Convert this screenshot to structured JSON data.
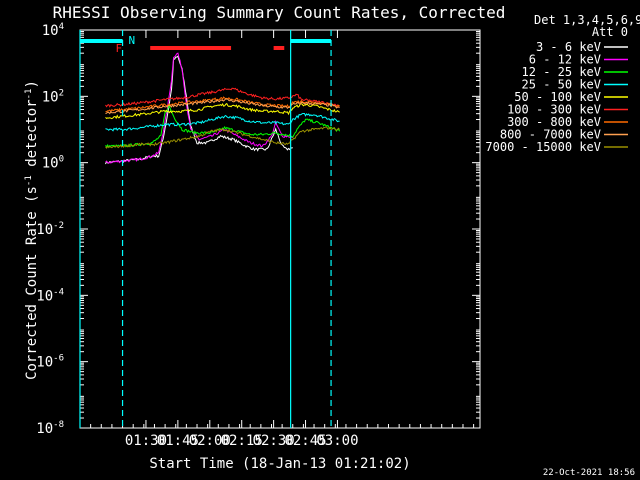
{
  "chart_data": {
    "type": "line",
    "title": "RHESSI Observing Summary Count Rates, Corrected",
    "xlabel": "Start Time (18-Jan-13 01:21:02)",
    "ylabel_main": "Corrected Count Rate (s",
    "ylabel_sup1": "-1",
    "ylabel_mid": " detector",
    "ylabel_sup2": "-1",
    "ylabel_end": ")",
    "yscale": "log",
    "ylim_exp": [
      -8,
      4
    ],
    "xlim_min": [
      -22,
      166
    ],
    "x_ticks": [
      {
        "min": 9,
        "label": "01:30"
      },
      {
        "min": 24,
        "label": "01:45"
      },
      {
        "min": 39,
        "label": "02:00"
      },
      {
        "min": 54,
        "label": "02:15"
      },
      {
        "min": 69,
        "label": "02:30"
      },
      {
        "min": 84,
        "label": "02:45"
      },
      {
        "min": 99,
        "label": "03:00"
      }
    ],
    "y_ticks": [
      {
        "exp": 4,
        "label": "10",
        "sup": "4"
      },
      {
        "exp": 2,
        "label": "10",
        "sup": "2"
      },
      {
        "exp": 0,
        "label": "10",
        "sup": "0"
      },
      {
        "exp": -2,
        "label": "10",
        "sup": "-2"
      },
      {
        "exp": -4,
        "label": "10",
        "sup": "-4"
      },
      {
        "exp": -6,
        "label": "10",
        "sup": "-6"
      },
      {
        "exp": -8,
        "label": "10",
        "sup": "-8"
      }
    ],
    "legend_header": [
      "Det 1,3,4,5,6,9,",
      "Att 0"
    ],
    "series": [
      {
        "name": "3 - 6 keV",
        "color": "#ffffff",
        "points": [
          [
            -10,
            0.0
          ],
          [
            -2,
            0.05
          ],
          [
            6,
            0.1
          ],
          [
            12,
            0.2
          ],
          [
            15,
            0.2
          ],
          [
            17,
            0.7
          ],
          [
            19,
            1.4
          ],
          [
            21,
            2.2
          ],
          [
            22,
            3.1
          ],
          [
            24,
            3.2
          ],
          [
            26,
            2.8
          ],
          [
            28,
            2.0
          ],
          [
            30,
            1.1
          ],
          [
            33,
            0.6
          ],
          [
            38,
            0.6
          ],
          [
            44,
            0.8
          ],
          [
            50,
            0.7
          ],
          [
            56,
            0.5
          ],
          [
            60,
            0.4
          ],
          [
            66,
            0.4
          ],
          [
            70,
            1.0
          ],
          [
            73,
            0.5
          ],
          [
            75,
            0.4
          ],
          [
            78,
            0.45
          ]
        ]
      },
      {
        "name": "6 - 12 keV",
        "color": "#ff00ff",
        "points": [
          [
            -10,
            0.0
          ],
          [
            -2,
            0.05
          ],
          [
            6,
            0.1
          ],
          [
            12,
            0.2
          ],
          [
            15,
            0.3
          ],
          [
            17,
            0.9
          ],
          [
            19,
            1.6
          ],
          [
            21,
            2.5
          ],
          [
            22,
            3.2
          ],
          [
            24,
            3.3
          ],
          [
            26,
            2.8
          ],
          [
            28,
            1.8
          ],
          [
            30,
            1.0
          ],
          [
            34,
            0.7
          ],
          [
            40,
            0.8
          ],
          [
            46,
            1.0
          ],
          [
            52,
            0.8
          ],
          [
            58,
            0.6
          ],
          [
            64,
            0.5
          ],
          [
            68,
            0.8
          ],
          [
            70,
            1.2
          ],
          [
            73,
            0.8
          ],
          [
            76,
            0.8
          ],
          [
            78,
            0.75
          ]
        ]
      },
      {
        "name": "12 - 25 keV",
        "color": "#00ff00",
        "points": [
          [
            -10,
            0.5
          ],
          [
            -2,
            0.5
          ],
          [
            6,
            0.55
          ],
          [
            12,
            0.6
          ],
          [
            16,
            0.8
          ],
          [
            18,
            1.5
          ],
          [
            20,
            1.7
          ],
          [
            22,
            1.4
          ],
          [
            26,
            1.0
          ],
          [
            32,
            0.9
          ],
          [
            40,
            0.9
          ],
          [
            46,
            1.05
          ],
          [
            52,
            0.95
          ],
          [
            58,
            0.85
          ],
          [
            64,
            0.85
          ],
          [
            70,
            0.9
          ],
          [
            74,
            0.85
          ],
          [
            78,
            0.8
          ],
          [
            80,
            1.0
          ],
          [
            84,
            1.3
          ],
          [
            90,
            1.2
          ],
          [
            96,
            1.05
          ],
          [
            100,
            0.95
          ]
        ]
      },
      {
        "name": "25 - 50 keV",
        "color": "#00ffff",
        "points": [
          [
            -10,
            1.0
          ],
          [
            -2,
            1.0
          ],
          [
            6,
            1.05
          ],
          [
            12,
            1.1
          ],
          [
            18,
            1.15
          ],
          [
            26,
            1.15
          ],
          [
            34,
            1.2
          ],
          [
            40,
            1.3
          ],
          [
            46,
            1.4
          ],
          [
            52,
            1.35
          ],
          [
            58,
            1.25
          ],
          [
            64,
            1.2
          ],
          [
            70,
            1.2
          ],
          [
            76,
            1.15
          ],
          [
            78,
            1.3
          ],
          [
            82,
            1.45
          ],
          [
            88,
            1.45
          ],
          [
            94,
            1.35
          ],
          [
            100,
            1.25
          ]
        ]
      },
      {
        "name": "50 - 100 keV",
        "color": "#ffff00",
        "points": [
          [
            -10,
            1.35
          ],
          [
            -2,
            1.4
          ],
          [
            6,
            1.45
          ],
          [
            12,
            1.5
          ],
          [
            18,
            1.55
          ],
          [
            26,
            1.55
          ],
          [
            34,
            1.6
          ],
          [
            40,
            1.7
          ],
          [
            46,
            1.75
          ],
          [
            52,
            1.7
          ],
          [
            58,
            1.6
          ],
          [
            64,
            1.55
          ],
          [
            70,
            1.55
          ],
          [
            76,
            1.5
          ],
          [
            78,
            1.65
          ],
          [
            82,
            1.75
          ],
          [
            88,
            1.72
          ],
          [
            94,
            1.62
          ],
          [
            100,
            1.52
          ]
        ]
      },
      {
        "name": "100 - 300 keV",
        "color": "#ff2020",
        "points": [
          [
            -10,
            1.72
          ],
          [
            -2,
            1.75
          ],
          [
            6,
            1.8
          ],
          [
            12,
            1.85
          ],
          [
            18,
            1.9
          ],
          [
            26,
            1.95
          ],
          [
            34,
            2.05
          ],
          [
            40,
            2.12
          ],
          [
            46,
            2.2
          ],
          [
            50,
            2.25
          ],
          [
            52,
            2.18
          ],
          [
            58,
            2.05
          ],
          [
            64,
            1.95
          ],
          [
            70,
            1.92
          ],
          [
            76,
            1.95
          ],
          [
            78,
            2.0
          ],
          [
            80,
            2.05
          ],
          [
            82,
            1.9
          ],
          [
            88,
            1.85
          ],
          [
            94,
            1.8
          ],
          [
            100,
            1.72
          ]
        ]
      },
      {
        "name": "300 - 800 keV",
        "color": "#ff6a00",
        "points": [
          [
            -10,
            1.55
          ],
          [
            -2,
            1.6
          ],
          [
            6,
            1.65
          ],
          [
            12,
            1.7
          ],
          [
            18,
            1.75
          ],
          [
            26,
            1.8
          ],
          [
            34,
            1.85
          ],
          [
            40,
            1.9
          ],
          [
            46,
            1.95
          ],
          [
            52,
            1.9
          ],
          [
            58,
            1.82
          ],
          [
            64,
            1.75
          ],
          [
            70,
            1.72
          ],
          [
            76,
            1.7
          ],
          [
            78,
            1.82
          ],
          [
            82,
            1.85
          ],
          [
            88,
            1.82
          ],
          [
            94,
            1.78
          ],
          [
            100,
            1.7
          ]
        ]
      },
      {
        "name": "800 - 7000 keV",
        "color": "#ffa050",
        "points": [
          [
            -10,
            1.5
          ],
          [
            -2,
            1.55
          ],
          [
            6,
            1.6
          ],
          [
            12,
            1.65
          ],
          [
            18,
            1.7
          ],
          [
            26,
            1.75
          ],
          [
            34,
            1.8
          ],
          [
            40,
            1.85
          ],
          [
            46,
            1.9
          ],
          [
            52,
            1.85
          ],
          [
            58,
            1.78
          ],
          [
            64,
            1.72
          ],
          [
            70,
            1.68
          ],
          [
            76,
            1.66
          ],
          [
            78,
            1.75
          ],
          [
            82,
            1.8
          ],
          [
            88,
            1.78
          ],
          [
            94,
            1.74
          ],
          [
            100,
            1.66
          ]
        ]
      },
      {
        "name": "7000 - 15000 keV",
        "color": "#9a9000",
        "points": [
          [
            -10,
            0.45
          ],
          [
            -2,
            0.5
          ],
          [
            6,
            0.55
          ],
          [
            12,
            0.55
          ],
          [
            18,
            0.6
          ],
          [
            26,
            0.7
          ],
          [
            34,
            0.8
          ],
          [
            40,
            0.95
          ],
          [
            46,
            1.0
          ],
          [
            52,
            0.9
          ],
          [
            58,
            0.8
          ],
          [
            64,
            0.7
          ],
          [
            70,
            0.6
          ],
          [
            76,
            0.55
          ],
          [
            78,
            0.7
          ],
          [
            82,
            0.95
          ],
          [
            88,
            1.0
          ],
          [
            94,
            1.05
          ],
          [
            100,
            1.0
          ]
        ]
      }
    ],
    "flag_bars": [
      {
        "label": "",
        "color": "#00ffff",
        "segments": [
          [
            -22,
            -2
          ],
          [
            77,
            96
          ]
        ]
      },
      {
        "label": "F",
        "color": "#ff2020",
        "segments": [
          [
            11,
            49
          ],
          [
            69,
            74
          ]
        ]
      }
    ],
    "flag_letters": [
      {
        "text": "F",
        "color": "#ff2020"
      },
      {
        "text": "N",
        "color": "#00ffff"
      }
    ],
    "vlines_min": [
      -22,
      -2,
      77,
      96
    ],
    "footer_date": "22-Oct-2021 18:56"
  }
}
